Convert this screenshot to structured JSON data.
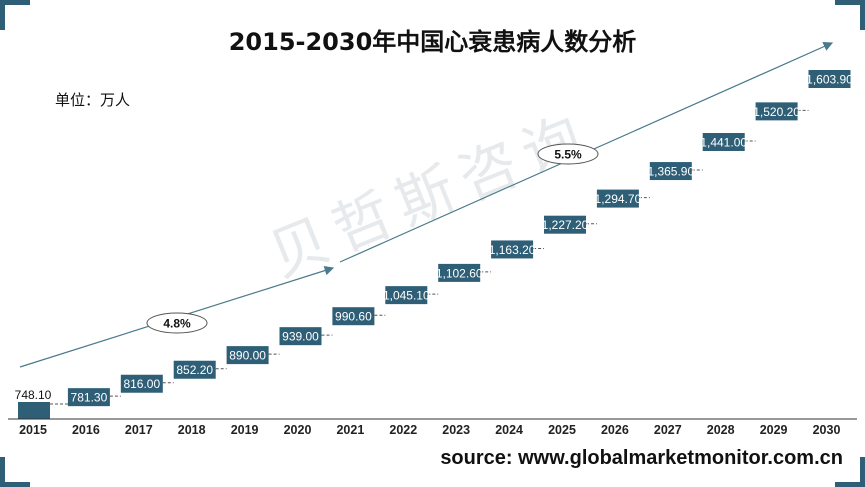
{
  "title": "2015-2030年中国心衰患病人数分析",
  "unit_label": "单位：万人",
  "source": "source: www.globalmarketmonitor.com.cn",
  "watermark": "贝哲斯咨询",
  "colors": {
    "bar": "#2e5f77",
    "frame": "#2e5f77",
    "arrow": "#4a7a8c",
    "connector": "#555555"
  },
  "chart_data": {
    "type": "bar",
    "title": "2015-2030年中国心衰患病人数分析",
    "xlabel": "",
    "ylabel": "",
    "categories": [
      "2015",
      "2016",
      "2017",
      "2018",
      "2019",
      "2020",
      "2021",
      "2022",
      "2023",
      "2024",
      "2025",
      "2026",
      "2027",
      "2028",
      "2029",
      "2030"
    ],
    "values": [
      748.1,
      781.3,
      816.0,
      852.2,
      890.0,
      939.0,
      990.6,
      1045.1,
      1102.6,
      1163.2,
      1227.2,
      1294.7,
      1365.9,
      1441.0,
      1520.2,
      1603.9
    ],
    "data_labels": [
      "748.10",
      "781.30",
      "816.00",
      "852.20",
      "890.00",
      "939.00",
      "990.60",
      "1,045.10",
      "1,102.60",
      "1,163.20",
      "1,227.20",
      "1,294.70",
      "1,365.90",
      "1,441.00",
      "1,520.20",
      "1,603.90"
    ],
    "annotations": [
      {
        "label": "4.8%",
        "x_index": 3
      },
      {
        "label": "5.5%",
        "x_index": 10
      }
    ],
    "grid": false,
    "legend": "none"
  }
}
